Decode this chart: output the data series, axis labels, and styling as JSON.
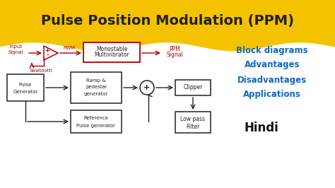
{
  "title": "Pulse Position Modulation (PPM)",
  "title_bg": "#F5C200",
  "bg_color": "#FFFFFF",
  "right_labels": [
    "Block diagrams",
    "Advantages",
    "Disadvantages",
    "Applications"
  ],
  "right_label_color": "#1565C0",
  "hindi_label": "Hindi",
  "hindi_color": "#111111",
  "red_color": "#AA0000",
  "black_color": "#222222"
}
